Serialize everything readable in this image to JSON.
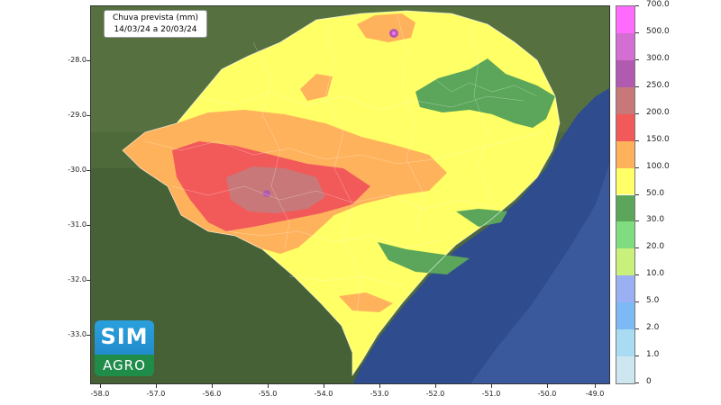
{
  "title": {
    "line1": "Chuva prevista (mm)",
    "line2": "14/03/24 a 20/03/24"
  },
  "lat_ticks": [
    "-28.0",
    "-29.0",
    "-30.0",
    "-31.0",
    "-32.0",
    "-33.0"
  ],
  "lon_ticks": [
    "-58.0",
    "-57.0",
    "-56.0",
    "-55.0",
    "-54.0",
    "-53.0",
    "-52.0",
    "-51.0",
    "-50.0",
    "-49.0"
  ],
  "legend": {
    "levels": [
      {
        "label": "0",
        "color": "#f2f0f7"
      },
      {
        "label": "1.0",
        "color": "#cde6ef"
      },
      {
        "label": "2.0",
        "color": "#a9dcf3"
      },
      {
        "label": "5.0",
        "color": "#7db9f5"
      },
      {
        "label": "10.0",
        "color": "#9bb0f2"
      },
      {
        "label": "20.0",
        "color": "#c8f07a"
      },
      {
        "label": "30.0",
        "color": "#7fdc7f"
      },
      {
        "label": "50.0",
        "color": "#5ba65b"
      },
      {
        "label": "100.0",
        "color": "#ffff66"
      },
      {
        "label": "150.0",
        "color": "#ffb25c"
      },
      {
        "label": "200.0",
        "color": "#f25a5a"
      },
      {
        "label": "250.0",
        "color": "#c87878"
      },
      {
        "label": "300.0",
        "color": "#b05ab0"
      },
      {
        "label": "500.0",
        "color": "#d36ed3"
      },
      {
        "label": "700.0",
        "color": "#ff6bff"
      }
    ]
  },
  "logo": {
    "word1": "SIM",
    "word2": "AGRO"
  },
  "colors": {
    "land": "#4f6a3a",
    "land_dark": "#3d5530",
    "ocean": "#2f4c8f",
    "ocean_light": "#4666aa"
  }
}
